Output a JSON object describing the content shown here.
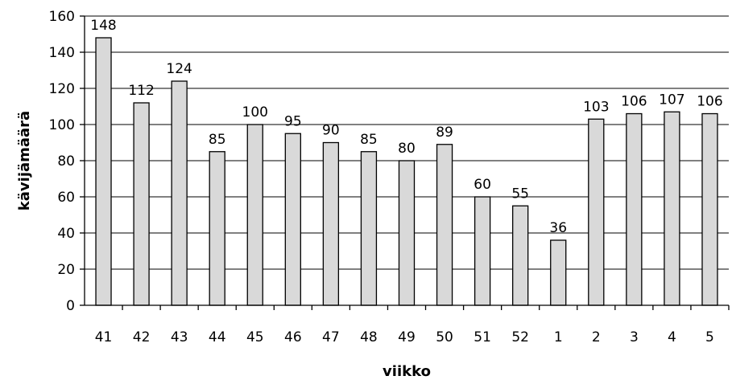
{
  "chart_data": {
    "type": "bar",
    "categories": [
      "41",
      "42",
      "43",
      "44",
      "45",
      "46",
      "47",
      "48",
      "49",
      "50",
      "51",
      "52",
      "1",
      "2",
      "3",
      "4",
      "5"
    ],
    "values": [
      148,
      112,
      124,
      85,
      100,
      95,
      90,
      85,
      80,
      89,
      60,
      55,
      36,
      103,
      106,
      107,
      106
    ],
    "data_labels": [
      "148",
      "112",
      "124",
      "85",
      "100",
      "95",
      "90",
      "85",
      "80",
      "89",
      "60",
      "55",
      "36",
      "103",
      "106",
      "107",
      "106"
    ],
    "xlabel": "viikko",
    "ylabel": "kävijämäärä",
    "ylim": [
      0,
      160
    ],
    "yticks": [
      "0",
      "20",
      "40",
      "60",
      "80",
      "100",
      "120",
      "140",
      "160"
    ],
    "grid": true,
    "colors": {
      "bar_fill": "#d9d9d9",
      "bar_stroke": "#000000",
      "grid": "#000000"
    }
  }
}
